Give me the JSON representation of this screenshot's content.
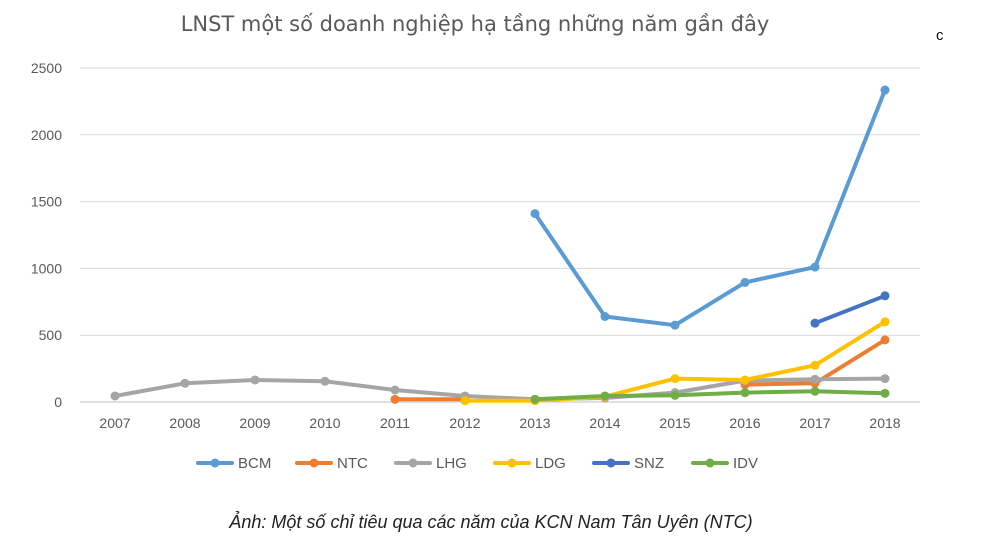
{
  "header": {
    "title": "LNST một số doanh nghiệp hạ tầng những năm gần đây",
    "corner_text": "c"
  },
  "caption": "Ảnh: Một số chỉ tiêu qua các năm của KCN Nam Tân Uyên (NTC)",
  "chart_data": {
    "type": "line",
    "title": "LNST một số doanh nghiệp hạ tầng những năm gần đây",
    "xlabel": "",
    "ylabel": "",
    "categories": [
      "2007",
      "2008",
      "2009",
      "2010",
      "2011",
      "2012",
      "2013",
      "2014",
      "2015",
      "2016",
      "2017",
      "2018"
    ],
    "yticks": [
      0,
      500,
      1000,
      1500,
      2000,
      2500
    ],
    "ylim": [
      0,
      2500
    ],
    "grid": "horizontal",
    "legend_position": "bottom",
    "series": [
      {
        "name": "BCM",
        "color": "#5B9BD5",
        "values": [
          null,
          null,
          null,
          null,
          null,
          null,
          1410,
          640,
          575,
          895,
          1010,
          2335
        ]
      },
      {
        "name": "NTC",
        "color": "#ED7D31",
        "values": [
          null,
          null,
          null,
          null,
          20,
          20,
          null,
          null,
          null,
          130,
          140,
          465
        ]
      },
      {
        "name": "LHG",
        "color": "#A5A5A5",
        "values": [
          45,
          140,
          165,
          155,
          90,
          45,
          20,
          30,
          70,
          160,
          170,
          175
        ]
      },
      {
        "name": "LDG",
        "color": "#FFC000",
        "values": [
          null,
          null,
          null,
          null,
          null,
          10,
          10,
          40,
          175,
          165,
          275,
          600
        ]
      },
      {
        "name": "SNZ",
        "color": "#4472C4",
        "values": [
          null,
          null,
          null,
          null,
          null,
          null,
          null,
          null,
          null,
          null,
          590,
          795
        ]
      },
      {
        "name": "IDV",
        "color": "#70AD47",
        "values": [
          null,
          null,
          null,
          null,
          null,
          null,
          20,
          45,
          50,
          70,
          80,
          65
        ]
      }
    ]
  }
}
